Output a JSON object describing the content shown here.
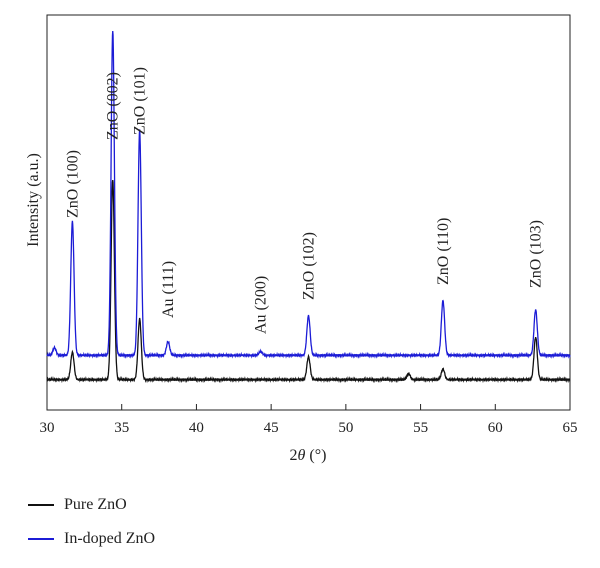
{
  "chart_data": {
    "type": "line",
    "xlabel_pre": "2",
    "xlabel_theta": "θ",
    "xlabel_post": " (°)",
    "ylabel": "Intensity (a.u.)",
    "xlim": [
      30,
      65
    ],
    "xticks": [
      30,
      35,
      40,
      45,
      50,
      55,
      60,
      65
    ],
    "grid": false,
    "legend_placement": "below",
    "series": [
      {
        "name": "Pure ZnO",
        "color": "#111111",
        "baseline": 1.0,
        "peaks": [
          {
            "x": 31.7,
            "h": 0.9
          },
          {
            "x": 34.4,
            "h": 6.6
          },
          {
            "x": 36.2,
            "h": 2.0
          },
          {
            "x": 47.5,
            "h": 0.75
          },
          {
            "x": 54.2,
            "h": 0.2
          },
          {
            "x": 56.5,
            "h": 0.35
          },
          {
            "x": 62.7,
            "h": 1.4
          }
        ]
      },
      {
        "name": "In-doped ZnO",
        "color": "#1c1cd6",
        "baseline": 1.8,
        "peaks": [
          {
            "x": 30.5,
            "h": 0.25
          },
          {
            "x": 31.7,
            "h": 4.4
          },
          {
            "x": 34.4,
            "h": 10.7
          },
          {
            "x": 36.2,
            "h": 7.4
          },
          {
            "x": 38.1,
            "h": 0.45
          },
          {
            "x": 44.3,
            "h": 0.12
          },
          {
            "x": 47.5,
            "h": 1.3
          },
          {
            "x": 56.5,
            "h": 1.8
          },
          {
            "x": 62.7,
            "h": 1.5
          }
        ]
      }
    ],
    "annotations": [
      {
        "text": "ZnO (100)",
        "x": 31.7
      },
      {
        "text": "ZnO (002)",
        "x": 34.4
      },
      {
        "text": "ZnO (101)",
        "x": 36.2
      },
      {
        "text": "Au (111)",
        "x": 38.1
      },
      {
        "text": "Au (200)",
        "x": 44.3
      },
      {
        "text": "ZnO (102)",
        "x": 47.5
      },
      {
        "text": "ZnO (110)",
        "x": 56.5
      },
      {
        "text": "ZnO (103)",
        "x": 62.7
      }
    ]
  },
  "legend": {
    "items": [
      {
        "label": "Pure ZnO",
        "color": "#111111"
      },
      {
        "label": "In-doped ZnO",
        "color": "#1c1cd6"
      }
    ]
  }
}
